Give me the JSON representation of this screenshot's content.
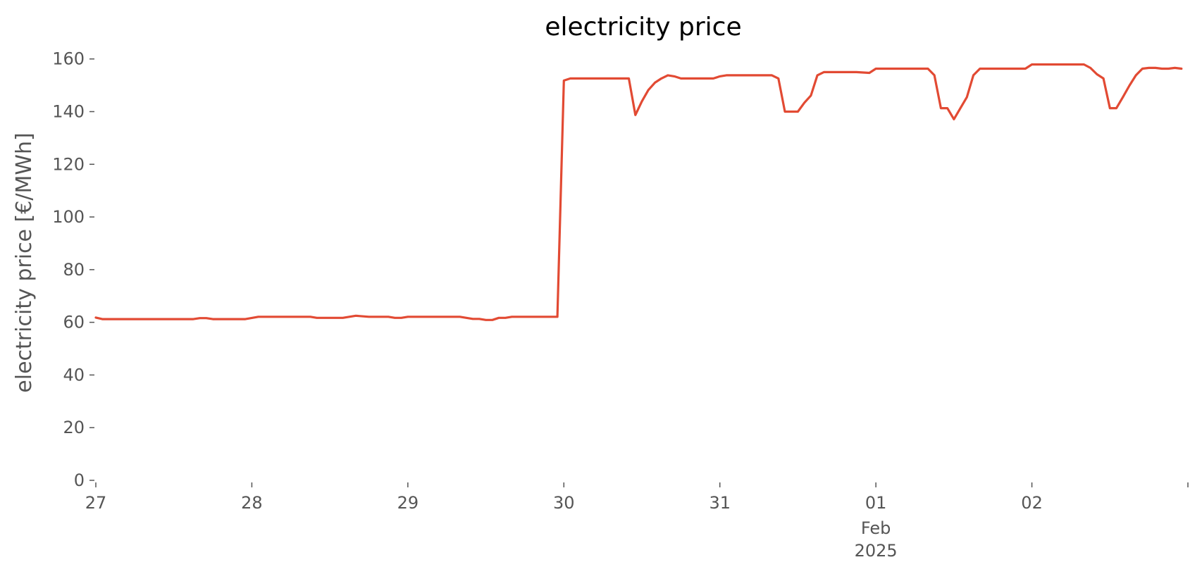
{
  "chart_data": {
    "type": "line",
    "title": "electricity price",
    "xlabel": "",
    "ylabel": "electricity price [€/MWh]",
    "xlim": [
      "2025-01-27T00:00",
      "2025-02-02T23:00"
    ],
    "ylim": [
      0,
      165
    ],
    "grid": false,
    "y_ticks": [
      0,
      20,
      40,
      60,
      80,
      100,
      120,
      140,
      160
    ],
    "x_ticks": [
      {
        "date": "2025-01-27T00:00",
        "label": "27",
        "sub": []
      },
      {
        "date": "2025-01-28T00:00",
        "label": "28",
        "sub": []
      },
      {
        "date": "2025-01-29T00:00",
        "label": "29",
        "sub": []
      },
      {
        "date": "2025-01-30T00:00",
        "label": "30",
        "sub": []
      },
      {
        "date": "2025-01-31T00:00",
        "label": "31",
        "sub": []
      },
      {
        "date": "2025-02-01T00:00",
        "label": "01",
        "sub": [
          "Feb",
          "2025"
        ]
      },
      {
        "date": "2025-02-02T00:00",
        "label": "02",
        "sub": []
      },
      {
        "date": "2025-02-03T00:00",
        "label": "",
        "sub": []
      }
    ],
    "colors": {
      "series": "#e24a33",
      "text": "#555555"
    },
    "series": [
      {
        "points": [
          [
            "2025-01-27T00:00",
            61.8
          ],
          [
            "2025-01-27T01:00",
            61.2
          ],
          [
            "2025-01-27T04:00",
            61.2
          ],
          [
            "2025-01-27T12:00",
            61.2
          ],
          [
            "2025-01-27T15:00",
            61.2
          ],
          [
            "2025-01-27T16:00",
            61.6
          ],
          [
            "2025-01-27T17:00",
            61.6
          ],
          [
            "2025-01-27T18:00",
            61.2
          ],
          [
            "2025-01-27T23:00",
            61.2
          ],
          [
            "2025-01-28T01:00",
            62.1
          ],
          [
            "2025-01-28T07:00",
            62.1
          ],
          [
            "2025-01-28T09:00",
            62.1
          ],
          [
            "2025-01-28T10:00",
            61.7
          ],
          [
            "2025-01-28T14:00",
            61.7
          ],
          [
            "2025-01-28T16:00",
            62.5
          ],
          [
            "2025-01-28T18:00",
            62.1
          ],
          [
            "2025-01-28T21:00",
            62.1
          ],
          [
            "2025-01-28T22:00",
            61.7
          ],
          [
            "2025-01-28T23:00",
            61.7
          ],
          [
            "2025-01-29T00:00",
            62.1
          ],
          [
            "2025-01-29T08:00",
            62.1
          ],
          [
            "2025-01-29T10:00",
            61.3
          ],
          [
            "2025-01-29T11:00",
            61.3
          ],
          [
            "2025-01-29T12:00",
            60.9
          ],
          [
            "2025-01-29T13:00",
            60.9
          ],
          [
            "2025-01-29T14:00",
            61.7
          ],
          [
            "2025-01-29T15:00",
            61.7
          ],
          [
            "2025-01-29T16:00",
            62.1
          ],
          [
            "2025-01-29T23:00",
            62.1
          ],
          [
            "2025-01-30T00:00",
            151.8
          ],
          [
            "2025-01-30T01:00",
            152.6
          ],
          [
            "2025-01-30T10:00",
            152.6
          ],
          [
            "2025-01-30T11:00",
            138.7
          ],
          [
            "2025-01-30T12:00",
            143.9
          ],
          [
            "2025-01-30T13:00",
            148.2
          ],
          [
            "2025-01-30T14:00",
            151.0
          ],
          [
            "2025-01-30T15:00",
            152.6
          ],
          [
            "2025-01-30T16:00",
            153.8
          ],
          [
            "2025-01-30T17:00",
            153.4
          ],
          [
            "2025-01-30T18:00",
            152.6
          ],
          [
            "2025-01-30T23:00",
            152.6
          ],
          [
            "2025-01-31T00:00",
            153.4
          ],
          [
            "2025-01-31T01:00",
            153.8
          ],
          [
            "2025-01-31T08:00",
            153.8
          ],
          [
            "2025-01-31T09:00",
            152.6
          ],
          [
            "2025-01-31T10:00",
            140.0
          ],
          [
            "2025-01-31T12:00",
            140.0
          ],
          [
            "2025-01-31T13:00",
            143.4
          ],
          [
            "2025-01-31T14:00",
            146.1
          ],
          [
            "2025-01-31T15:00",
            153.8
          ],
          [
            "2025-01-31T16:00",
            155.0
          ],
          [
            "2025-01-31T21:00",
            155.0
          ],
          [
            "2025-01-31T23:00",
            154.7
          ],
          [
            "2025-02-01T00:00",
            156.3
          ],
          [
            "2025-02-01T07:00",
            156.3
          ],
          [
            "2025-02-01T08:00",
            156.3
          ],
          [
            "2025-02-01T09:00",
            153.8
          ],
          [
            "2025-02-01T10:00",
            141.3
          ],
          [
            "2025-02-01T11:00",
            141.3
          ],
          [
            "2025-02-01T12:00",
            137.1
          ],
          [
            "2025-02-01T13:00",
            141.3
          ],
          [
            "2025-02-01T14:00",
            145.5
          ],
          [
            "2025-02-01T15:00",
            153.8
          ],
          [
            "2025-02-01T16:00",
            156.3
          ],
          [
            "2025-02-01T23:00",
            156.3
          ],
          [
            "2025-02-02T00:00",
            157.9
          ],
          [
            "2025-02-02T08:00",
            157.9
          ],
          [
            "2025-02-02T09:00",
            156.6
          ],
          [
            "2025-02-02T10:00",
            154.2
          ],
          [
            "2025-02-02T11:00",
            152.6
          ],
          [
            "2025-02-02T12:00",
            141.3
          ],
          [
            "2025-02-02T13:00",
            141.3
          ],
          [
            "2025-02-02T14:00",
            145.5
          ],
          [
            "2025-02-02T15:00",
            149.9
          ],
          [
            "2025-02-02T16:00",
            153.8
          ],
          [
            "2025-02-02T17:00",
            156.3
          ],
          [
            "2025-02-02T18:00",
            156.6
          ],
          [
            "2025-02-02T19:00",
            156.6
          ],
          [
            "2025-02-02T20:00",
            156.3
          ],
          [
            "2025-02-02T21:00",
            156.3
          ],
          [
            "2025-02-02T22:00",
            156.6
          ],
          [
            "2025-02-02T23:00",
            156.3
          ]
        ]
      }
    ]
  }
}
